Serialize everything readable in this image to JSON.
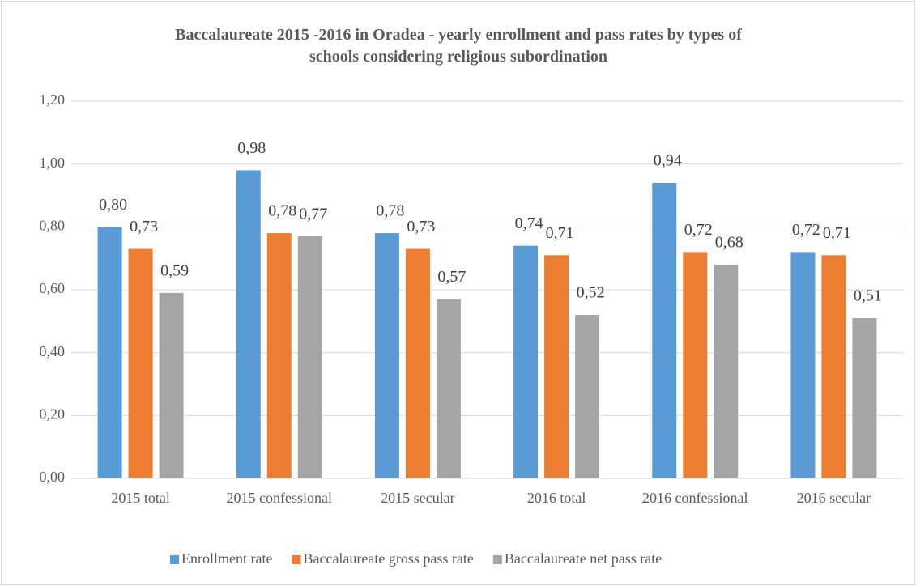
{
  "chart_data": {
    "type": "bar",
    "title": "Baccalaureate 2015 -2016 in Oradea - yearly enrollment and pass rates by types of schools considering religious subordination",
    "categories": [
      "2015 total",
      "2015 confessional",
      "2015 secular",
      "2016 total",
      "2016 confessional",
      "2016 secular"
    ],
    "series": [
      {
        "name": "Enrollment rate",
        "color": "#5b9bd5",
        "values": [
          0.8,
          0.98,
          0.78,
          0.74,
          0.94,
          0.72
        ],
        "value_labels": [
          "0,80",
          "0,98",
          "0,78",
          "0,74",
          "0,94",
          "0,72"
        ]
      },
      {
        "name": "Baccalaureate gross pass rate",
        "color": "#ed7d31",
        "values": [
          0.73,
          0.78,
          0.73,
          0.71,
          0.72,
          0.71
        ],
        "value_labels": [
          "0,73",
          "0,78",
          "0,73",
          "0,71",
          "0,72",
          "0,71"
        ]
      },
      {
        "name": "Baccalaureate net pass rate",
        "color": "#a5a5a5",
        "values": [
          0.59,
          0.77,
          0.57,
          0.52,
          0.68,
          0.51
        ],
        "value_labels": [
          "0,59",
          "0,77",
          "0,57",
          "0,52",
          "0,68",
          "0,51"
        ]
      }
    ],
    "ylim": [
      0,
      1.2
    ],
    "yticks": [
      {
        "value": 0,
        "label": "0,00"
      },
      {
        "value": 0.2,
        "label": "0,20"
      },
      {
        "value": 0.4,
        "label": "0,40"
      },
      {
        "value": 0.6,
        "label": "0,60"
      },
      {
        "value": 0.8,
        "label": "0,80"
      },
      {
        "value": 1.0,
        "label": "1,00"
      },
      {
        "value": 1.2,
        "label": "1,20"
      }
    ],
    "grid": true,
    "legend": "bottom"
  }
}
